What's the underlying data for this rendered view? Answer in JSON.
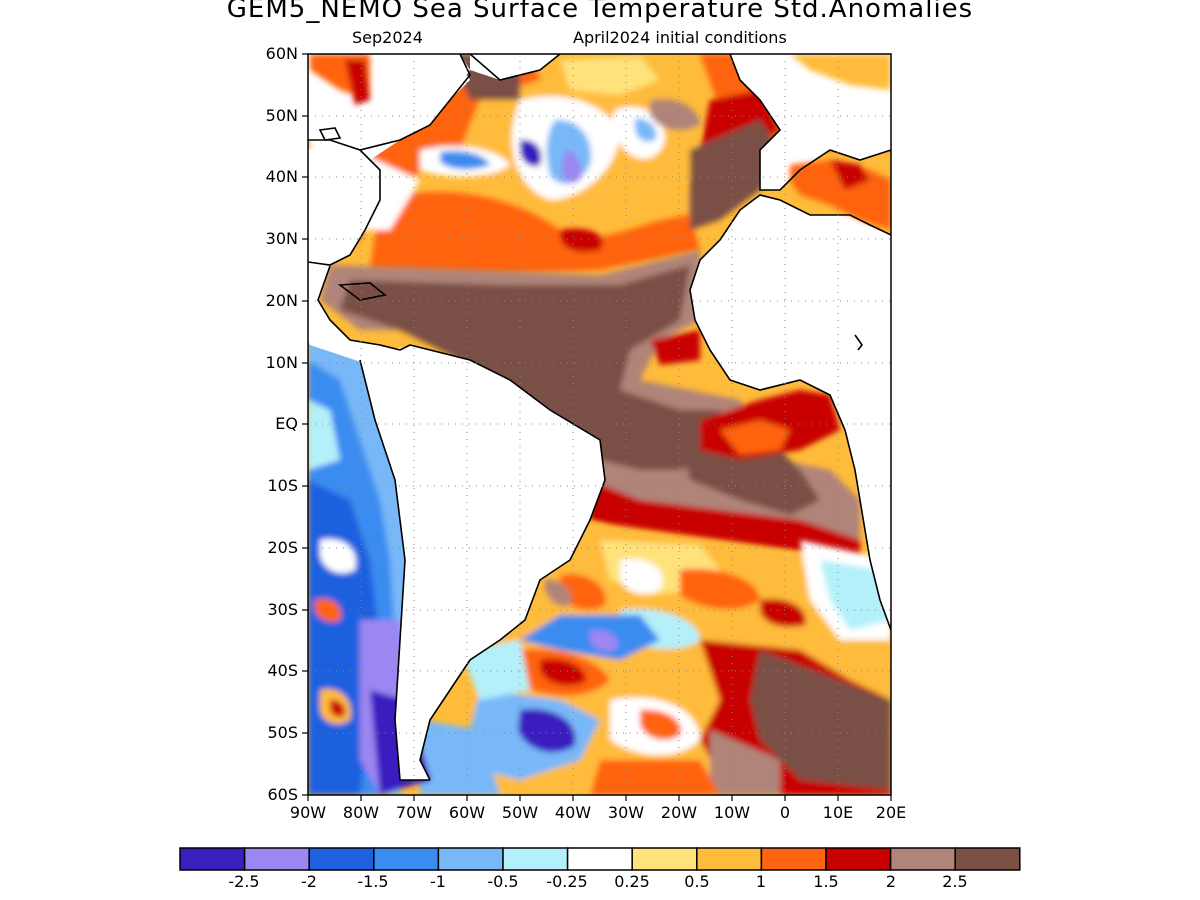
{
  "title": "GEM5_NEMO Sea Surface Temperature Std.Anomalies",
  "subtitle_left": "Sep2024",
  "subtitle_right": "April2024 initial conditions",
  "y_axis_labels": [
    "60N",
    "50N",
    "40N",
    "30N",
    "20N",
    "10N",
    "EQ",
    "10S",
    "20S",
    "30S",
    "40S",
    "50S",
    "60S"
  ],
  "x_axis_labels": [
    "90W",
    "80W",
    "70W",
    "60W",
    "50W",
    "40W",
    "30W",
    "20W",
    "10W",
    "0",
    "10E",
    "20E"
  ],
  "colorbar": {
    "colors": [
      "#3a1fbf",
      "#9c86f2",
      "#1e60e0",
      "#3a8cf0",
      "#78b8f8",
      "#b4f0fa",
      "#ffffff",
      "#ffe27a",
      "#ffbb3a",
      "#ff6410",
      "#c80000",
      "#b08478",
      "#7a5044"
    ],
    "labels": [
      "-2.5",
      "-2",
      "-1.5",
      "-1",
      "-0.5",
      "-0.25",
      "0.25",
      "0.5",
      "1",
      "1.5",
      "2",
      "2.5"
    ]
  },
  "map": {
    "lat_range": [
      -60,
      60
    ],
    "lon_range": [
      -90,
      20
    ],
    "grid": "dotted",
    "land_color": "#ffffff",
    "coast_color": "#000000"
  }
}
